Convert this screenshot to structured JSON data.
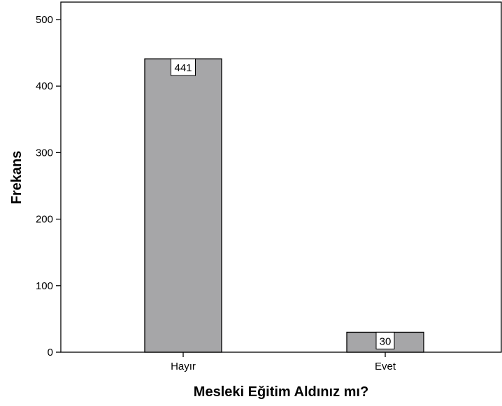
{
  "chart_data": {
    "type": "bar",
    "categories": [
      "Hayır",
      "Evet"
    ],
    "values": [
      441,
      30
    ],
    "data_labels": [
      "441",
      "30"
    ],
    "xlabel": "Mesleki Eğitim Aldınız mı?",
    "ylabel": "Frekans",
    "ylim": [
      0,
      520
    ],
    "yticks": [
      "0",
      "100",
      "200",
      "300",
      "400",
      "500"
    ],
    "grid": false,
    "colors": {
      "bar_fill": "#a6a6a8",
      "bar_stroke": "#000000",
      "label_box": "#ffffff"
    }
  }
}
